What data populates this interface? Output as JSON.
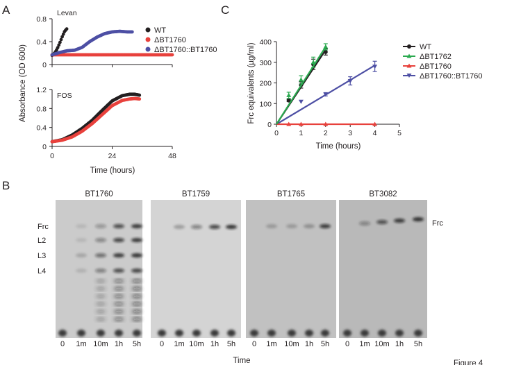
{
  "panel_labels": {
    "a": "A",
    "b": "B",
    "c": "C"
  },
  "footer": {
    "time_label": "Time",
    "figure_label": "Figure 4"
  },
  "colors": {
    "wt": "#231f20",
    "d1760": "#e8413c",
    "comp": "#4d4fa4",
    "d1762": "#2aa94f"
  },
  "chart_data": [
    {
      "id": "panel-a-levan",
      "type": "scatter",
      "title": "Levan",
      "xlim": [
        0,
        48
      ],
      "ylim": [
        0,
        0.8
      ],
      "yticks": [
        "0",
        "0.4",
        "0.8"
      ],
      "series": [
        {
          "name": "WT",
          "color": "#231f20",
          "x": [
            0,
            1,
            2,
            3,
            4,
            5,
            6
          ],
          "y": [
            0.16,
            0.2,
            0.27,
            0.37,
            0.48,
            0.58,
            0.63
          ]
        },
        {
          "name": "ΔBT1760",
          "color": "#e8413c",
          "x": [
            0,
            48
          ],
          "y": [
            0.17,
            0.17
          ]
        },
        {
          "name": "ΔBT1760::BT1760",
          "color": "#4d4fa4",
          "x": [
            0,
            3,
            6,
            9,
            12,
            15,
            18,
            21,
            24,
            27,
            30,
            32
          ],
          "y": [
            0.17,
            0.21,
            0.24,
            0.25,
            0.3,
            0.4,
            0.48,
            0.54,
            0.57,
            0.58,
            0.57,
            0.57
          ]
        }
      ]
    },
    {
      "id": "panel-a-fos",
      "type": "scatter",
      "title": "FOS",
      "xlabel": "Time (hours)",
      "ylabel": "Absorbance (OD 600)",
      "xlim": [
        0,
        48
      ],
      "ylim": [
        0,
        1.2
      ],
      "xticks": [
        "0",
        "24",
        "48"
      ],
      "yticks": [
        "0",
        "0.4",
        "0.8",
        "1.2"
      ],
      "series": [
        {
          "name": "WT",
          "color": "#231f20",
          "x": [
            0,
            4,
            8,
            12,
            16,
            20,
            24,
            28,
            31,
            33,
            35
          ],
          "y": [
            0.1,
            0.14,
            0.24,
            0.38,
            0.55,
            0.76,
            0.96,
            1.07,
            1.1,
            1.1,
            1.08
          ]
        },
        {
          "name": "ΔBT1760",
          "color": "#e8413c",
          "x": [
            0,
            4,
            8,
            12,
            16,
            20,
            24,
            28,
            31,
            33,
            35
          ],
          "y": [
            0.1,
            0.13,
            0.2,
            0.32,
            0.48,
            0.67,
            0.86,
            0.97,
            1.0,
            1.01,
            1.0
          ]
        }
      ]
    },
    {
      "id": "panel-c",
      "type": "line",
      "xlabel": "Time (hours)",
      "ylabel": "Frc equivalents (µg/ml)",
      "xlim": [
        0,
        5
      ],
      "ylim": [
        0,
        400
      ],
      "xticks": [
        "0",
        "1",
        "2",
        "3",
        "4",
        "5"
      ],
      "yticks": [
        "0",
        "100",
        "200",
        "300",
        "400"
      ],
      "legend": "right",
      "series": [
        {
          "name": "WT",
          "color": "#231f20",
          "marker": "circle",
          "x": [
            0.5,
            1,
            1.5,
            2
          ],
          "y": [
            115,
            190,
            290,
            350
          ],
          "err": [
            5,
            15,
            25,
            15
          ],
          "fit": [
            [
              0,
              0
            ],
            [
              2,
              360
            ]
          ]
        },
        {
          "name": "ΔBT1762",
          "color": "#2aa94f",
          "marker": "triangle-up",
          "x": [
            0.5,
            1,
            1.5,
            2
          ],
          "y": [
            140,
            215,
            300,
            375
          ],
          "err": [
            15,
            20,
            25,
            15
          ],
          "fit": [
            [
              0,
              0
            ],
            [
              2,
              375
            ]
          ]
        },
        {
          "name": "ΔBT1760",
          "color": "#e8413c",
          "marker": "triangle-up",
          "x": [
            0.5,
            1,
            2,
            4
          ],
          "y": [
            0,
            0,
            0,
            0
          ],
          "err": [
            0,
            0,
            0,
            0
          ],
          "fit": [
            [
              0,
              0
            ],
            [
              4,
              0
            ]
          ]
        },
        {
          "name": "ΔBT1760::BT1760",
          "color": "#4d4fa4",
          "marker": "triangle-down",
          "x": [
            1,
            2,
            3,
            4
          ],
          "y": [
            110,
            145,
            210,
            280
          ],
          "err": [
            0,
            8,
            20,
            25
          ],
          "fit": [
            [
              0,
              0
            ],
            [
              4,
              285
            ]
          ]
        }
      ]
    }
  ],
  "gels": [
    {
      "title": "BT1760",
      "lanes": [
        "0",
        "1m",
        "10m",
        "1h",
        "5h"
      ],
      "row_labels": [
        "Frc",
        "L2",
        "L3",
        "L4"
      ],
      "bg": "#cbcbcb",
      "band_intensity": [
        [
          0,
          0.12,
          0.35,
          0.8,
          0.95
        ],
        [
          0,
          0.12,
          0.45,
          0.85,
          0.95
        ],
        [
          0,
          0.22,
          0.6,
          0.95,
          1.0
        ],
        [
          0,
          0.15,
          0.5,
          0.8,
          0.85
        ]
      ]
    },
    {
      "title": "BT1759",
      "lanes": [
        "0",
        "1m",
        "10m",
        "1h",
        "5h"
      ],
      "bg": "#d4d4d4",
      "band_intensity": [
        [
          0,
          0.3,
          0.5,
          0.85,
          1.0
        ]
      ]
    },
    {
      "title": "BT1765",
      "lanes": [
        "0",
        "1m",
        "10m",
        "1h",
        "5h"
      ],
      "bg": "#c1c1c1",
      "band_intensity": [
        [
          0,
          0.25,
          0.25,
          0.3,
          0.9
        ]
      ]
    },
    {
      "title": "BT3082",
      "lanes": [
        "0",
        "1m",
        "10m",
        "1h",
        "5h"
      ],
      "right_label": "Frc",
      "bg": "#b9b9b9",
      "band_intensity": [
        [
          0,
          0.4,
          0.75,
          0.9,
          1.0
        ]
      ]
    }
  ]
}
